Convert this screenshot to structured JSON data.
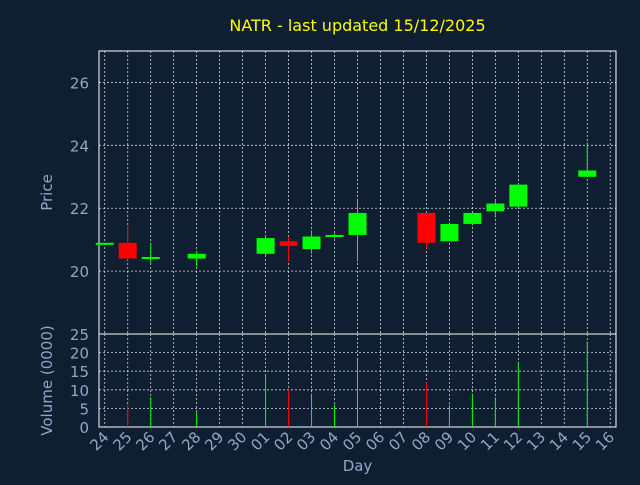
{
  "chart_data": {
    "type": "candlestick",
    "title": "NATR - last updated 15/12/2025",
    "xlabel": "Day",
    "ylabel_price": "Price",
    "ylabel_volume": "Volume (0000)",
    "x_ticks": [
      "24",
      "25",
      "26",
      "27",
      "28",
      "29",
      "30",
      "01",
      "02",
      "03",
      "04",
      "05",
      "06",
      "07",
      "08",
      "09",
      "10",
      "11",
      "12",
      "13",
      "14",
      "15",
      "16"
    ],
    "price_ylim": [
      18.0,
      27.0
    ],
    "price_ticks": [
      "20",
      "22",
      "24",
      "26"
    ],
    "volume_ylim": [
      0,
      25
    ],
    "volume_ticks": [
      "0",
      "5",
      "10",
      "15",
      "20",
      "25"
    ],
    "grid": true,
    "colors": {
      "up": "#00ff00",
      "down": "#ff0000",
      "background": "#0f1e30",
      "text": "#8fa8c8",
      "title": "#ffff00",
      "grid": "#ffffff"
    },
    "candles": [
      {
        "x": 24.0,
        "open": 20.9,
        "high": 20.9,
        "low": 20.9,
        "close": 20.9,
        "volume": 0.0
      },
      {
        "x": 25.0,
        "open": 20.9,
        "high": 21.45,
        "low": 20.35,
        "close": 20.4,
        "volume": 6.0
      },
      {
        "x": 26.0,
        "open": 20.4,
        "high": 20.85,
        "low": 20.25,
        "close": 20.45,
        "volume": 8.0
      },
      {
        "x": 28.0,
        "open": 20.4,
        "high": 20.65,
        "low": 20.15,
        "close": 20.55,
        "volume": 4.0
      },
      {
        "x": 31.0,
        "open": 20.55,
        "high": 21.15,
        "low": 20.5,
        "close": 21.05,
        "volume": 14.0
      },
      {
        "x": 32.0,
        "open": 20.95,
        "high": 21.1,
        "low": 20.3,
        "close": 20.8,
        "volume": 10.0
      },
      {
        "x": 33.0,
        "open": 20.7,
        "high": 21.3,
        "low": 20.55,
        "close": 21.1,
        "volume": 9.0
      },
      {
        "x": 34.0,
        "open": 21.1,
        "high": 21.2,
        "low": 21.05,
        "close": 21.15,
        "volume": 6.0
      },
      {
        "x": 35.0,
        "open": 21.15,
        "high": 22.3,
        "low": 20.3,
        "close": 21.85,
        "volume": 18.0
      },
      {
        "x": 38.0,
        "open": 21.85,
        "high": 21.85,
        "low": 20.7,
        "close": 20.9,
        "volume": 12.0
      },
      {
        "x": 39.0,
        "open": 20.95,
        "high": 21.55,
        "low": 20.95,
        "close": 21.5,
        "volume": 6.0
      },
      {
        "x": 40.0,
        "open": 21.5,
        "high": 21.85,
        "low": 21.45,
        "close": 21.85,
        "volume": 9.0
      },
      {
        "x": 41.0,
        "open": 21.9,
        "high": 22.25,
        "low": 21.7,
        "close": 22.15,
        "volume": 8.0
      },
      {
        "x": 42.0,
        "open": 22.05,
        "high": 22.8,
        "low": 22.0,
        "close": 22.75,
        "volume": 17.0
      },
      {
        "x": 45.0,
        "open": 23.0,
        "high": 24.1,
        "low": 23.0,
        "close": 23.2,
        "volume": 23.0
      }
    ]
  }
}
